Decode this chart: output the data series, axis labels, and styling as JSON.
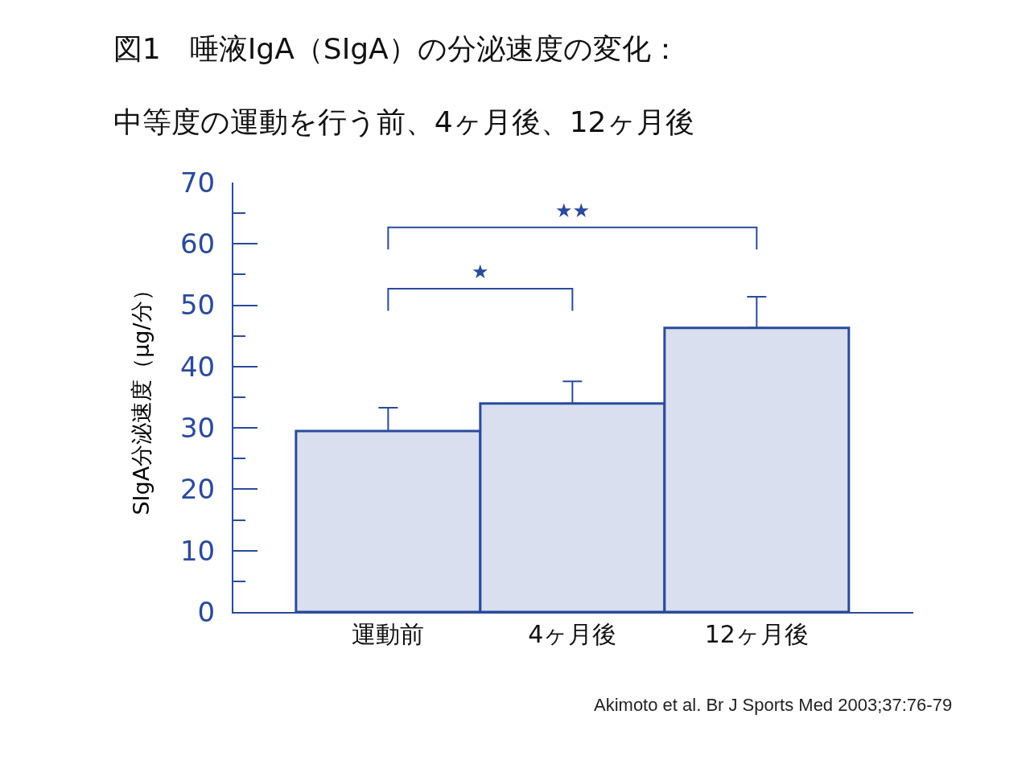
{
  "chart_data": {
    "type": "bar",
    "title": "図1　唾液IgA（SIgA）の分泌速度の変化：",
    "subtitle": "中等度の運動を行う前、4ヶ月後、12ヶ月後",
    "ylabel": "SIgA分泌速度（μg/分）",
    "categories": [
      "運動前",
      "4ヶ月後",
      "12ヶ月後"
    ],
    "values": [
      29.5,
      34,
      46.3
    ],
    "errors": [
      [
        29.5,
        33.3
      ],
      [
        34,
        37.6
      ],
      [
        46.3,
        51.4
      ]
    ],
    "color": "#d9dfee",
    "ylim": [
      0,
      70
    ],
    "yticks": [
      0,
      10,
      20,
      30,
      40,
      50,
      60,
      70
    ],
    "grid": false,
    "legend": false,
    "annotations": [
      "★",
      "★★",
      "Akimoto et al. Br J Sports Med 2003;37:76-79"
    ]
  }
}
